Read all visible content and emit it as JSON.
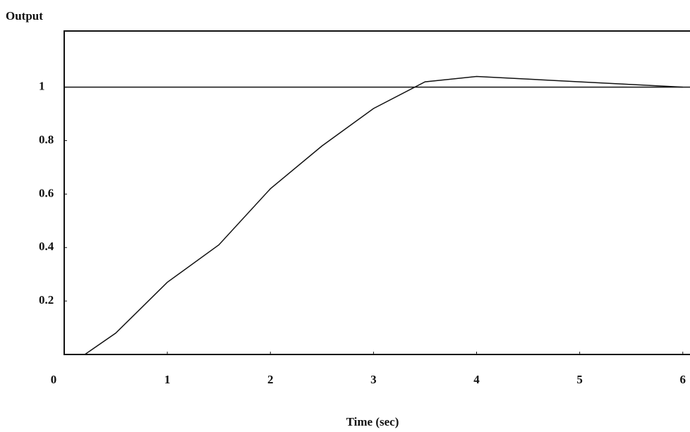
{
  "chart_data": {
    "type": "line",
    "y_label": "Output",
    "x_label": "Time (sec)",
    "x": [
      0.2,
      0.5,
      1,
      1.5,
      2,
      2.5,
      3,
      3.5,
      4,
      4.5,
      5,
      5.5,
      6
    ],
    "series": [
      {
        "color": "#111111",
        "values": [
          0,
          0.08,
          0.27,
          0.41,
          0.62,
          0.78,
          0.92,
          1.02,
          1.04,
          1.03,
          1.02,
          1.01,
          1.0
        ]
      }
    ],
    "reference_line": 1,
    "xlim": [
      0,
      6.07
    ],
    "ylim": [
      0,
      1.21
    ],
    "xticks": [
      0,
      1,
      2,
      3,
      4,
      5,
      6
    ],
    "yticks": [
      0.2,
      0.4,
      0.6,
      0.8,
      1
    ]
  }
}
